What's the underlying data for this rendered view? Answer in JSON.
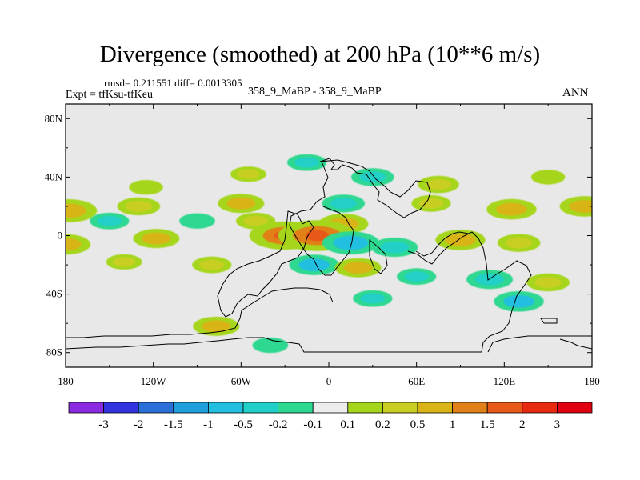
{
  "title": "Divergence (smoothed) at 200 hPa (10**6 m/s)",
  "stats": "rmsd= 0.211551 diff= 0.0013305",
  "experiment": "Expt = tfKsu-tfKeu",
  "cases": "358_9_MaBP - 358_9_MaBP",
  "season": "ANN",
  "lat_ticks": [
    "80N",
    "40N",
    "0",
    "40S",
    "80S"
  ],
  "lon_ticks": [
    "180",
    "120W",
    "60W",
    "0",
    "60E",
    "120E",
    "180"
  ],
  "colorbar": {
    "labels": [
      "-3",
      "-2",
      "-1.5",
      "-1",
      "-0.5",
      "-0.2",
      "-0.1",
      "0.1",
      "0.2",
      "0.5",
      "1",
      "1.5",
      "2",
      "3"
    ],
    "colors": [
      "#8a2be2",
      "#3333e0",
      "#2a6fd8",
      "#1fa0dc",
      "#23bfe0",
      "#20d0c8",
      "#2ed890",
      "#ececec",
      "#a6d61c",
      "#c8cf22",
      "#d8b416",
      "#e08018",
      "#e85818",
      "#e82a10",
      "#e00010"
    ]
  },
  "chart_data": {
    "type": "heatmap",
    "field": "Divergence (smoothed) at 200 hPa",
    "units": "10**6 m/s",
    "xlim": [
      -180,
      180
    ],
    "ylim": [
      -90,
      90
    ],
    "contour_levels": [
      -3,
      -2,
      -1.5,
      -1,
      -0.5,
      -0.2,
      -0.1,
      0.1,
      0.2,
      0.5,
      1,
      1.5,
      2,
      3
    ],
    "features": [
      {
        "lon": -125,
        "lat": 33,
        "value": 0.15
      },
      {
        "lon": -55,
        "lat": 42,
        "value": 0.2
      },
      {
        "lon": -15,
        "lat": 50,
        "value": -0.3
      },
      {
        "lon": 30,
        "lat": 40,
        "value": -0.4
      },
      {
        "lon": 75,
        "lat": 35,
        "value": 0.35
      },
      {
        "lon": 150,
        "lat": 40,
        "value": 0.15
      },
      {
        "lon": -178,
        "lat": 17,
        "value": 0.8
      },
      {
        "lon": -130,
        "lat": 20,
        "value": 0.4
      },
      {
        "lon": -60,
        "lat": 22,
        "value": 0.5
      },
      {
        "lon": 10,
        "lat": 22,
        "value": -0.4
      },
      {
        "lon": 70,
        "lat": 22,
        "value": 0.3
      },
      {
        "lon": 125,
        "lat": 18,
        "value": 0.6
      },
      {
        "lon": 175,
        "lat": 20,
        "value": 0.6
      },
      {
        "lon": -150,
        "lat": 10,
        "value": -0.3
      },
      {
        "lon": -90,
        "lat": 10,
        "value": -0.2
      },
      {
        "lon": -50,
        "lat": 10,
        "value": 0.3
      },
      {
        "lon": 10,
        "lat": 8,
        "value": 0.6
      },
      {
        "lon": -118,
        "lat": -2,
        "value": 0.5
      },
      {
        "lon": -30,
        "lat": 0,
        "value": 1.2
      },
      {
        "lon": -8,
        "lat": 0,
        "value": 1.4
      },
      {
        "lon": 15,
        "lat": -5,
        "value": -0.8
      },
      {
        "lon": 45,
        "lat": -8,
        "value": -0.5
      },
      {
        "lon": 90,
        "lat": -3,
        "value": 0.6
      },
      {
        "lon": 130,
        "lat": -5,
        "value": 0.4
      },
      {
        "lon": -180,
        "lat": -6,
        "value": 0.6
      },
      {
        "lon": -10,
        "lat": -20,
        "value": -0.6
      },
      {
        "lon": 20,
        "lat": -22,
        "value": 0.5
      },
      {
        "lon": -80,
        "lat": -20,
        "value": 0.3
      },
      {
        "lon": -140,
        "lat": -18,
        "value": 0.2
      },
      {
        "lon": 60,
        "lat": -28,
        "value": -0.3
      },
      {
        "lon": 110,
        "lat": -30,
        "value": -0.5
      },
      {
        "lon": 150,
        "lat": -32,
        "value": 0.4
      },
      {
        "lon": 130,
        "lat": -45,
        "value": -0.6
      },
      {
        "lon": 30,
        "lat": -43,
        "value": -0.3
      },
      {
        "lon": -77,
        "lat": -62,
        "value": 0.5
      },
      {
        "lon": -40,
        "lat": -75,
        "value": -0.2
      }
    ]
  }
}
